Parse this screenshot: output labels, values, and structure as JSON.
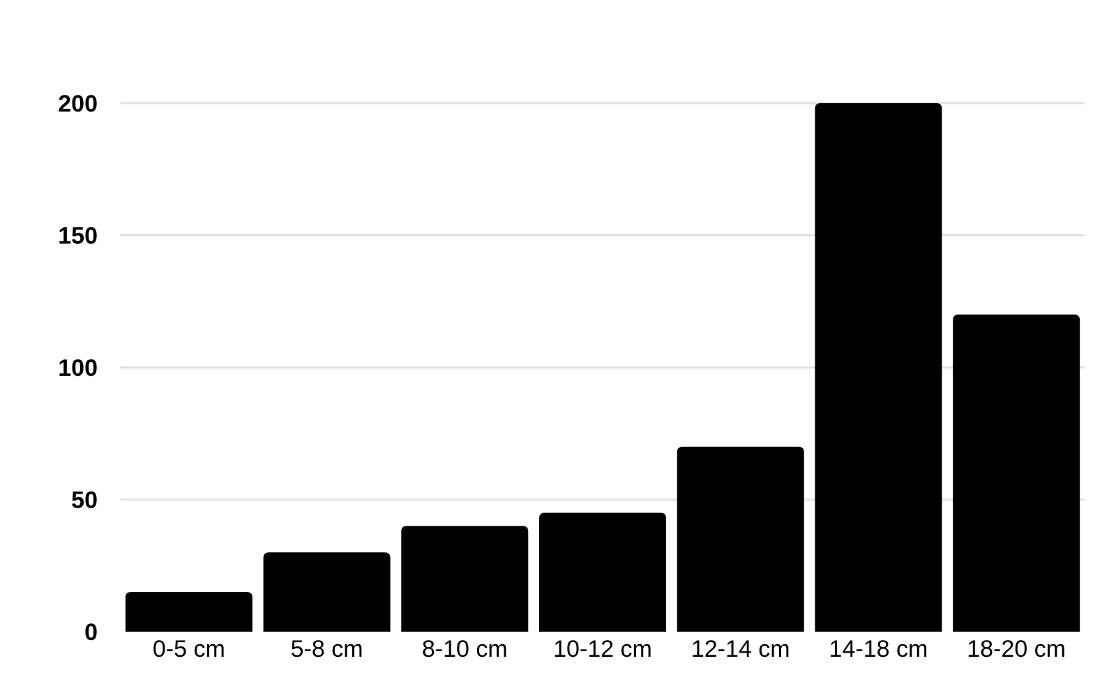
{
  "chart_data": {
    "type": "bar",
    "title": "",
    "xlabel": "",
    "ylabel": "",
    "categories": [
      "0-5 cm",
      "5-8 cm",
      "8-10 cm",
      "10-12 cm",
      "12-14 cm",
      "14-18 cm",
      "18-20 cm"
    ],
    "values": [
      15,
      30,
      40,
      45,
      70,
      200,
      120
    ],
    "ylim": [
      0,
      200
    ],
    "yticks": [
      0,
      50,
      100,
      150,
      200
    ],
    "ytick_labels": [
      "0",
      "50",
      "100",
      "150",
      "200"
    ],
    "grid": true,
    "legend": "none",
    "bar_color": "#000000",
    "grid_color": "#e2e2e2"
  }
}
